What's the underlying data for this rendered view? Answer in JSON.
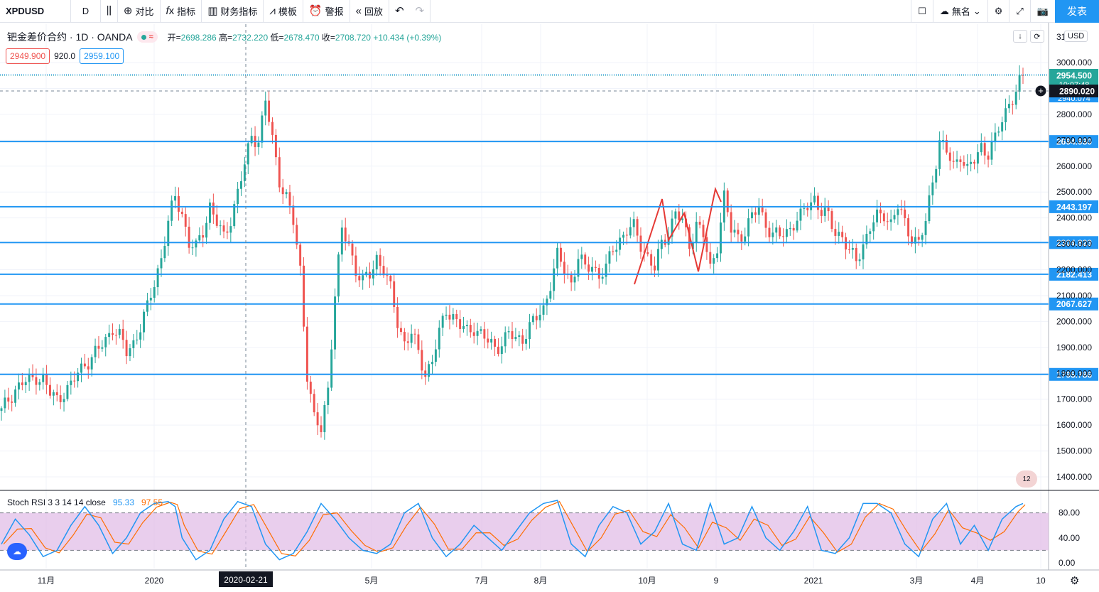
{
  "toolbar": {
    "symbol": "XPDUSD",
    "interval": "D",
    "compare": "对比",
    "indicators": "指标",
    "financials": "财务指标",
    "templates": "模板",
    "alerts": "警报",
    "replay": "回放",
    "layout_name": "無名",
    "publish": "发表"
  },
  "legend": {
    "title": "钯金差价合约 · 1D · OANDA",
    "open_label": "开=",
    "open": "2698.286",
    "high_label": "高=",
    "high": "2732.220",
    "low_label": "低=",
    "low": "2678.470",
    "close_label": "收=",
    "close": "2708.720",
    "change": "+10.434 (+0.39%)",
    "bid": "2949.900",
    "spread": "920.0",
    "ask": "2959.100",
    "currency": "USD"
  },
  "axis_overlay": {
    "top_partial": "31",
    "hidden_a": "10:07:48",
    "hidden_b": "2940.074"
  },
  "crosshair": {
    "date": "2020-02-21",
    "price": "2890.020"
  },
  "badge": "12",
  "indicator": {
    "name": "Stoch RSI 3 3 14 14 close",
    "k": "95.33",
    "d": "97.55",
    "levels": [
      80,
      20
    ],
    "ticks": [
      "80.00",
      "40.00",
      "0.00"
    ],
    "k_color": "#2196f3",
    "d_color": "#ff6d00",
    "band_color": "#e1bee7"
  },
  "chart_data": {
    "type": "candlestick",
    "symbol": "XPDUSD",
    "ylim": [
      1350,
      3100
    ],
    "y_ticks": [
      "3000.000",
      "2900.000",
      "2800.000",
      "2700.000",
      "2600.000",
      "2500.000",
      "2400.000",
      "2300.000",
      "2200.000",
      "2100.000",
      "2000.000",
      "1900.000",
      "1800.000",
      "1700.000",
      "1600.000",
      "1500.000",
      "1400.000"
    ],
    "x_labels": [
      "11月",
      "2020",
      "5月",
      "7月",
      "8月",
      "10月",
      "9",
      "2021",
      "3月",
      "4月",
      "10"
    ],
    "current_price": "2954.500",
    "horizontal_levels": [
      {
        "value": 2694.93,
        "label": "2694.930"
      },
      {
        "value": 2443.197,
        "label": "2443.197"
      },
      {
        "value": 2304.823,
        "label": "2304.823"
      },
      {
        "value": 2182.413,
        "label": "2182.413"
      },
      {
        "value": 2067.627,
        "label": "2067.627"
      },
      {
        "value": 1795.786,
        "label": "1795.786"
      }
    ],
    "close_path": [
      [
        0,
        1650
      ],
      [
        2,
        1700
      ],
      [
        4,
        1740
      ],
      [
        6,
        1760
      ],
      [
        8,
        1770
      ],
      [
        10,
        1790
      ],
      [
        12,
        1775
      ],
      [
        14,
        1720
      ],
      [
        16,
        1700
      ],
      [
        18,
        1730
      ],
      [
        20,
        1750
      ],
      [
        22,
        1800
      ],
      [
        24,
        1840
      ],
      [
        26,
        1860
      ],
      [
        28,
        1890
      ],
      [
        30,
        1930
      ],
      [
        32,
        1980
      ],
      [
        34,
        1940
      ],
      [
        36,
        1880
      ],
      [
        38,
        1920
      ],
      [
        40,
        1980
      ],
      [
        42,
        2050
      ],
      [
        44,
        2150
      ],
      [
        46,
        2250
      ],
      [
        48,
        2380
      ],
      [
        50,
        2480
      ],
      [
        52,
        2420
      ],
      [
        54,
        2300
      ],
      [
        56,
        2280
      ],
      [
        58,
        2350
      ],
      [
        60,
        2450
      ],
      [
        62,
        2380
      ],
      [
        64,
        2320
      ],
      [
        66,
        2400
      ],
      [
        68,
        2500
      ],
      [
        70,
        2600
      ],
      [
        72,
        2720
      ],
      [
        74,
        2700
      ],
      [
        76,
        2850
      ],
      [
        78,
        2700
      ],
      [
        80,
        2550
      ],
      [
        82,
        2480
      ],
      [
        84,
        2380
      ],
      [
        86,
        2200
      ],
      [
        88,
        1800
      ],
      [
        90,
        1620
      ],
      [
        92,
        1580
      ],
      [
        94,
        1750
      ],
      [
        96,
        2100
      ],
      [
        98,
        2350
      ],
      [
        100,
        2300
      ],
      [
        102,
        2200
      ],
      [
        104,
        2150
      ],
      [
        106,
        2180
      ],
      [
        108,
        2250
      ],
      [
        110,
        2200
      ],
      [
        112,
        2120
      ],
      [
        114,
        2000
      ],
      [
        116,
        1920
      ],
      [
        118,
        1950
      ],
      [
        120,
        1880
      ],
      [
        122,
        1800
      ],
      [
        124,
        1850
      ],
      [
        126,
        1950
      ],
      [
        128,
        2050
      ],
      [
        130,
        2020
      ],
      [
        132,
        1980
      ],
      [
        134,
        1960
      ],
      [
        136,
        1980
      ],
      [
        138,
        1950
      ],
      [
        140,
        1920
      ],
      [
        142,
        1900
      ],
      [
        144,
        1920
      ],
      [
        146,
        1950
      ],
      [
        148,
        1930
      ],
      [
        150,
        1940
      ],
      [
        152,
        1980
      ],
      [
        154,
        2010
      ],
      [
        156,
        2050
      ],
      [
        158,
        2150
      ],
      [
        160,
        2250
      ],
      [
        162,
        2200
      ],
      [
        164,
        2150
      ],
      [
        166,
        2250
      ],
      [
        168,
        2200
      ],
      [
        170,
        2220
      ],
      [
        172,
        2180
      ],
      [
        174,
        2200
      ],
      [
        176,
        2280
      ],
      [
        178,
        2320
      ],
      [
        180,
        2350
      ],
      [
        182,
        2360
      ],
      [
        184,
        2300
      ],
      [
        186,
        2250
      ],
      [
        188,
        2200
      ],
      [
        190,
        2300
      ],
      [
        192,
        2350
      ],
      [
        194,
        2420
      ],
      [
        196,
        2380
      ],
      [
        198,
        2300
      ],
      [
        200,
        2380
      ],
      [
        202,
        2330
      ],
      [
        204,
        2200
      ],
      [
        206,
        2300
      ],
      [
        208,
        2480
      ],
      [
        210,
        2350
      ],
      [
        212,
        2330
      ],
      [
        214,
        2350
      ],
      [
        216,
        2400
      ],
      [
        218,
        2440
      ],
      [
        220,
        2380
      ],
      [
        222,
        2330
      ],
      [
        224,
        2330
      ],
      [
        226,
        2350
      ],
      [
        228,
        2380
      ],
      [
        230,
        2400
      ],
      [
        232,
        2450
      ],
      [
        234,
        2480
      ],
      [
        236,
        2420
      ],
      [
        238,
        2400
      ],
      [
        240,
        2350
      ],
      [
        242,
        2330
      ],
      [
        244,
        2260
      ],
      [
        246,
        2240
      ],
      [
        248,
        2300
      ],
      [
        250,
        2360
      ],
      [
        252,
        2400
      ],
      [
        254,
        2420
      ],
      [
        256,
        2380
      ],
      [
        258,
        2440
      ],
      [
        260,
        2380
      ],
      [
        262,
        2330
      ],
      [
        264,
        2300
      ],
      [
        266,
        2380
      ],
      [
        268,
        2550
      ],
      [
        270,
        2700
      ],
      [
        272,
        2650
      ],
      [
        274,
        2600
      ],
      [
        276,
        2650
      ],
      [
        278,
        2580
      ],
      [
        280,
        2620
      ],
      [
        282,
        2680
      ],
      [
        284,
        2650
      ],
      [
        286,
        2700
      ],
      [
        288,
        2780
      ],
      [
        290,
        2850
      ],
      [
        292,
        2880
      ],
      [
        294,
        2950
      ]
    ],
    "stoch_path": [
      [
        0,
        30
      ],
      [
        4,
        70
      ],
      [
        8,
        45
      ],
      [
        12,
        10
      ],
      [
        16,
        20
      ],
      [
        20,
        60
      ],
      [
        24,
        90
      ],
      [
        28,
        60
      ],
      [
        32,
        15
      ],
      [
        36,
        40
      ],
      [
        40,
        80
      ],
      [
        44,
        95
      ],
      [
        48,
        98
      ],
      [
        50,
        90
      ],
      [
        52,
        40
      ],
      [
        56,
        5
      ],
      [
        60,
        20
      ],
      [
        64,
        70
      ],
      [
        68,
        98
      ],
      [
        72,
        90
      ],
      [
        76,
        30
      ],
      [
        80,
        5
      ],
      [
        84,
        15
      ],
      [
        88,
        50
      ],
      [
        92,
        95
      ],
      [
        96,
        70
      ],
      [
        100,
        40
      ],
      [
        104,
        20
      ],
      [
        108,
        15
      ],
      [
        112,
        30
      ],
      [
        116,
        80
      ],
      [
        120,
        95
      ],
      [
        124,
        40
      ],
      [
        128,
        10
      ],
      [
        132,
        30
      ],
      [
        136,
        60
      ],
      [
        140,
        40
      ],
      [
        144,
        20
      ],
      [
        148,
        50
      ],
      [
        152,
        80
      ],
      [
        156,
        95
      ],
      [
        160,
        100
      ],
      [
        164,
        30
      ],
      [
        168,
        10
      ],
      [
        172,
        60
      ],
      [
        176,
        90
      ],
      [
        180,
        80
      ],
      [
        184,
        30
      ],
      [
        188,
        50
      ],
      [
        192,
        95
      ],
      [
        196,
        30
      ],
      [
        200,
        20
      ],
      [
        204,
        95
      ],
      [
        208,
        30
      ],
      [
        212,
        40
      ],
      [
        216,
        90
      ],
      [
        220,
        40
      ],
      [
        224,
        20
      ],
      [
        228,
        50
      ],
      [
        232,
        90
      ],
      [
        236,
        20
      ],
      [
        240,
        15
      ],
      [
        244,
        40
      ],
      [
        248,
        95
      ],
      [
        252,
        95
      ],
      [
        256,
        80
      ],
      [
        260,
        30
      ],
      [
        264,
        10
      ],
      [
        268,
        70
      ],
      [
        272,
        95
      ],
      [
        276,
        30
      ],
      [
        280,
        60
      ],
      [
        284,
        20
      ],
      [
        288,
        70
      ],
      [
        292,
        90
      ],
      [
        294,
        95
      ]
    ]
  }
}
